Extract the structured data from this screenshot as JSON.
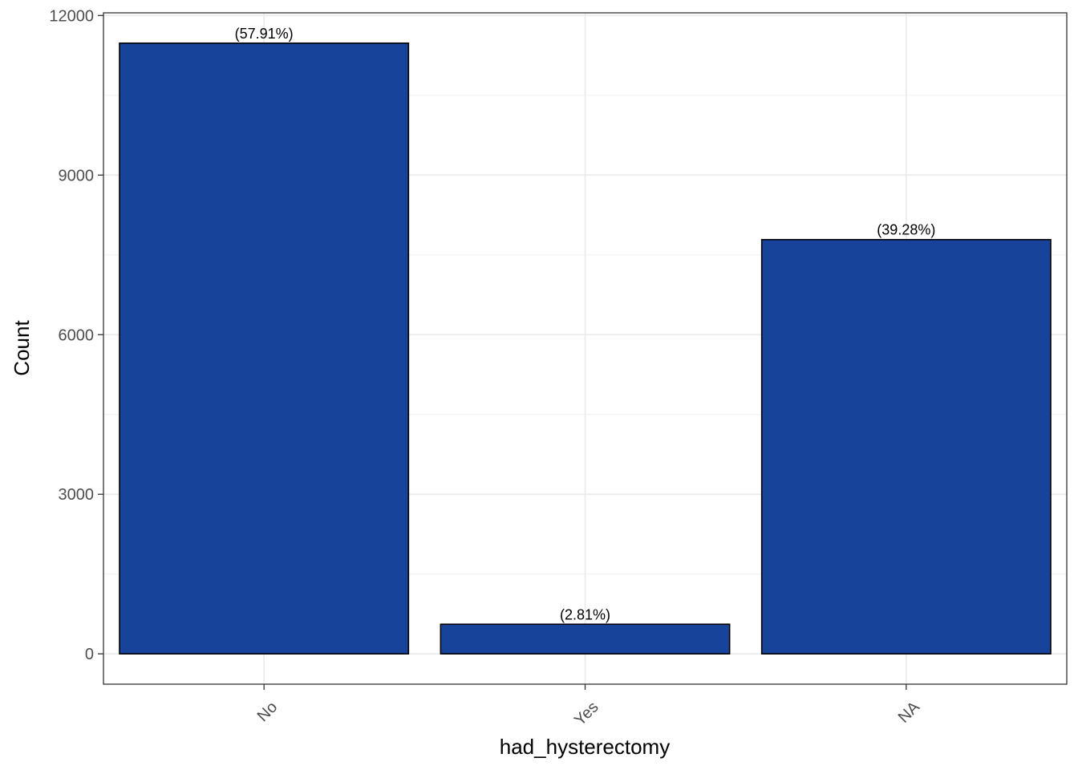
{
  "chart_data": {
    "type": "bar",
    "categories": [
      "No",
      "Yes",
      "NA"
    ],
    "values": [
      11480,
      557,
      7787
    ],
    "data_labels": [
      "(57.91%)",
      "(2.81%)",
      "(39.28%)"
    ],
    "xlabel": "had_hysterectomy",
    "ylabel": "Count",
    "ylim": [
      -570,
      12050
    ],
    "yticks": [
      0,
      3000,
      6000,
      9000,
      12000
    ],
    "ytick_labels": [
      "0",
      "3000",
      "6000",
      "9000",
      "12000"
    ],
    "grid": true,
    "x_tick_rotation": -45,
    "colors": {
      "bar_fill": "#17449A",
      "bar_stroke": "#000000",
      "grid_major": "#EBEBEB",
      "grid_minor": "#F3F3F3",
      "panel_border": "#333333"
    }
  }
}
